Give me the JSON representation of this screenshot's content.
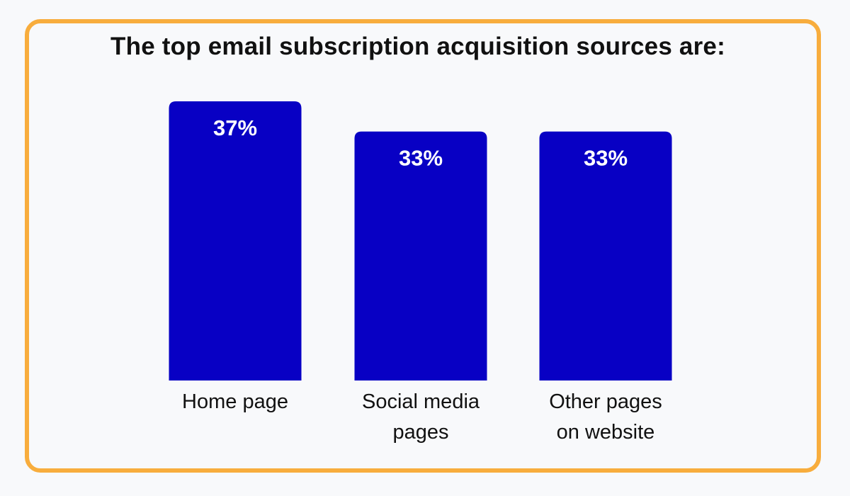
{
  "colors": {
    "bar": "#0800c4",
    "frame": "#f8ad3d",
    "background": "#f8f9fb",
    "text": "#111111"
  },
  "chart_data": {
    "type": "bar",
    "title": "The top email subscription acquisition sources are:",
    "xlabel": "",
    "ylabel": "",
    "ylim": [
      0,
      37
    ],
    "grid": false,
    "categories": [
      {
        "label_lines": [
          "Home page"
        ]
      },
      {
        "label_lines": [
          "Social media",
          "pages"
        ]
      },
      {
        "label_lines": [
          "Other pages",
          "on website"
        ]
      }
    ],
    "values": [
      37,
      33,
      33
    ],
    "value_labels": [
      "37%",
      "33%",
      "33%"
    ]
  }
}
